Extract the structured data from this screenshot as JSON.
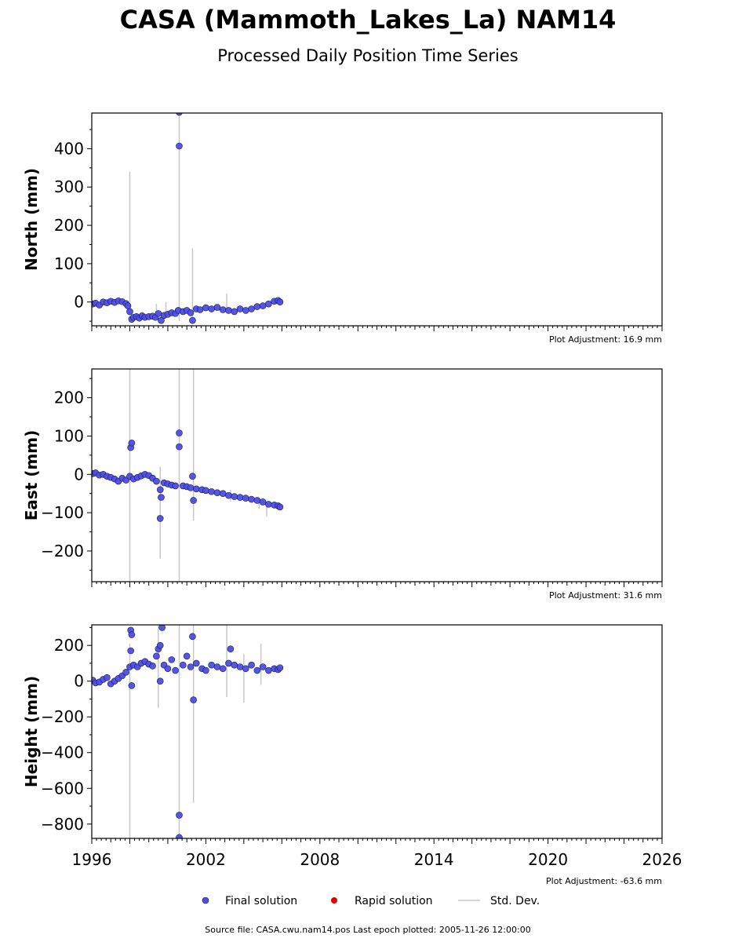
{
  "title": "CASA (Mammoth_Lakes_La) NAM14",
  "subtitle": "Processed Daily Position Time Series",
  "footer": "Source file: CASA.cwu.nam14.pos  Last epoch plotted: 2005-11-26 12:00:00",
  "legend": {
    "final": "Final solution",
    "rapid": "Rapid solution",
    "std": "Std. Dev."
  },
  "colors": {
    "final": "#4c4ce6",
    "final_edge": "#1a1a4d",
    "rapid": "#e00000",
    "std": "#c8c8c8"
  },
  "chart_data": [
    {
      "type": "scatter",
      "name": "north",
      "ylabel": "North (mm)",
      "adjustment": "Plot Adjustment: 16.9 mm",
      "xlim": [
        1996,
        2026
      ],
      "ylim": [
        -62,
        493
      ],
      "yticks": [
        0,
        100,
        200,
        300,
        400
      ],
      "ytick_labels": [
        "0",
        "100",
        "200",
        "300",
        "400"
      ],
      "series": [
        {
          "values": [
            [
              1996.05,
              -5
            ],
            [
              1996.2,
              -3
            ],
            [
              1996.4,
              -8
            ],
            [
              1996.6,
              0
            ],
            [
              1996.8,
              -2
            ],
            [
              1997.0,
              2
            ],
            [
              1997.2,
              -1
            ],
            [
              1997.4,
              3
            ],
            [
              1997.6,
              1
            ],
            [
              1997.8,
              -4
            ],
            [
              1997.9,
              -10
            ],
            [
              1998.0,
              -25
            ],
            [
              1998.1,
              -45
            ],
            [
              1998.2,
              -40
            ],
            [
              1998.35,
              -38
            ],
            [
              1998.5,
              -42
            ],
            [
              1998.65,
              -36
            ],
            [
              1998.8,
              -40
            ],
            [
              1999.0,
              -38
            ],
            [
              1999.2,
              -37
            ],
            [
              1999.35,
              -40
            ],
            [
              1999.5,
              -30
            ],
            [
              1999.65,
              -48
            ],
            [
              1999.8,
              -35
            ],
            [
              2000.0,
              -32
            ],
            [
              2000.2,
              -28
            ],
            [
              2000.4,
              -30
            ],
            [
              2000.55,
              -22
            ],
            [
              2000.6,
              495
            ],
            [
              2000.6,
              407
            ],
            [
              2000.8,
              -25
            ],
            [
              2001.0,
              -22
            ],
            [
              2001.2,
              -28
            ],
            [
              2001.3,
              -48
            ],
            [
              2001.5,
              -18
            ],
            [
              2001.7,
              -20
            ],
            [
              2002.0,
              -15
            ],
            [
              2002.3,
              -18
            ],
            [
              2002.6,
              -14
            ],
            [
              2002.9,
              -20
            ],
            [
              2003.2,
              -22
            ],
            [
              2003.5,
              -25
            ],
            [
              2003.8,
              -18
            ],
            [
              2004.1,
              -22
            ],
            [
              2004.4,
              -18
            ],
            [
              2004.7,
              -12
            ],
            [
              2005.0,
              -10
            ],
            [
              2005.3,
              -5
            ],
            [
              2005.6,
              2
            ],
            [
              2005.8,
              4
            ],
            [
              2005.9,
              0
            ]
          ]
        }
      ],
      "std": [
        [
          1998.0,
          -45,
          340
        ],
        [
          2000.6,
          -50,
          495
        ],
        [
          2001.3,
          -40,
          140
        ],
        [
          2003.1,
          -30,
          22
        ],
        [
          1999.4,
          -45,
          -5
        ],
        [
          1999.9,
          -40,
          0
        ]
      ]
    },
    {
      "type": "scatter",
      "name": "east",
      "ylabel": "East (mm)",
      "adjustment": "Plot Adjustment: 31.6 mm",
      "xlim": [
        1996,
        2026
      ],
      "ylim": [
        -280,
        275
      ],
      "yticks": [
        -200,
        -100,
        0,
        100,
        200
      ],
      "ytick_labels": [
        "−200",
        "−100",
        "0",
        "100",
        "200"
      ],
      "series": [
        {
          "values": [
            [
              1996.05,
              2
            ],
            [
              1996.2,
              4
            ],
            [
              1996.4,
              -2
            ],
            [
              1996.6,
              0
            ],
            [
              1996.8,
              -5
            ],
            [
              1997.0,
              -8
            ],
            [
              1997.2,
              -12
            ],
            [
              1997.4,
              -18
            ],
            [
              1997.6,
              -10
            ],
            [
              1997.8,
              -15
            ],
            [
              1998.0,
              -5
            ],
            [
              1998.05,
              70
            ],
            [
              1998.1,
              82
            ],
            [
              1998.2,
              -12
            ],
            [
              1998.4,
              -8
            ],
            [
              1998.6,
              -4
            ],
            [
              1998.8,
              0
            ],
            [
              1999.0,
              -3
            ],
            [
              1999.2,
              -10
            ],
            [
              1999.4,
              -18
            ],
            [
              1999.6,
              -40
            ],
            [
              1999.6,
              -115
            ],
            [
              1999.65,
              -60
            ],
            [
              1999.8,
              -22
            ],
            [
              2000.0,
              -25
            ],
            [
              2000.2,
              -28
            ],
            [
              2000.4,
              -30
            ],
            [
              2000.6,
              108
            ],
            [
              2000.6,
              72
            ],
            [
              2000.8,
              -30
            ],
            [
              2001.0,
              -32
            ],
            [
              2001.2,
              -35
            ],
            [
              2001.3,
              -5
            ],
            [
              2001.35,
              -68
            ],
            [
              2001.5,
              -38
            ],
            [
              2001.8,
              -40
            ],
            [
              2002.0,
              -42
            ],
            [
              2002.3,
              -45
            ],
            [
              2002.6,
              -48
            ],
            [
              2002.9,
              -50
            ],
            [
              2003.2,
              -55
            ],
            [
              2003.5,
              -58
            ],
            [
              2003.8,
              -60
            ],
            [
              2004.1,
              -62
            ],
            [
              2004.4,
              -65
            ],
            [
              2004.7,
              -68
            ],
            [
              2005.0,
              -72
            ],
            [
              2005.3,
              -78
            ],
            [
              2005.6,
              -80
            ],
            [
              2005.8,
              -82
            ],
            [
              2005.9,
              -85
            ]
          ]
        }
      ],
      "std": [
        [
          1998.0,
          -280,
          275
        ],
        [
          2000.6,
          -280,
          275
        ],
        [
          2001.35,
          -120,
          275
        ],
        [
          1999.6,
          -220,
          20
        ],
        [
          2003.3,
          -70,
          -40
        ],
        [
          2004.8,
          -90,
          -60
        ],
        [
          2005.2,
          -110,
          -70
        ]
      ]
    },
    {
      "type": "scatter",
      "name": "height",
      "ylabel": "Height (mm)",
      "adjustment": "Plot Adjustment: -63.6 mm",
      "xlim": [
        1996,
        2026
      ],
      "ylim": [
        -880,
        315
      ],
      "yticks": [
        -800,
        -600,
        -400,
        -200,
        0,
        200
      ],
      "ytick_labels": [
        "−800",
        "−600",
        "−400",
        "−200",
        "0",
        "200"
      ],
      "xticks": [
        1996,
        2002,
        2008,
        2014,
        2020,
        2026
      ],
      "xtick_labels": [
        "1996",
        "2002",
        "2008",
        "2014",
        "2020",
        "2026"
      ],
      "series": [
        {
          "values": [
            [
              1996.05,
              5
            ],
            [
              1996.2,
              -10
            ],
            [
              1996.4,
              -5
            ],
            [
              1996.6,
              10
            ],
            [
              1996.8,
              20
            ],
            [
              1997.0,
              -15
            ],
            [
              1997.2,
              0
            ],
            [
              1997.4,
              15
            ],
            [
              1997.6,
              30
            ],
            [
              1997.8,
              50
            ],
            [
              1998.0,
              80
            ],
            [
              1998.05,
              170
            ],
            [
              1998.05,
              285
            ],
            [
              1998.1,
              260
            ],
            [
              1998.1,
              -25
            ],
            [
              1998.2,
              90
            ],
            [
              1998.4,
              80
            ],
            [
              1998.6,
              100
            ],
            [
              1998.8,
              110
            ],
            [
              1999.0,
              95
            ],
            [
              1999.2,
              85
            ],
            [
              1999.4,
              140
            ],
            [
              1999.5,
              180
            ],
            [
              1999.6,
              200
            ],
            [
              1999.7,
              300
            ],
            [
              1999.6,
              0
            ],
            [
              1999.8,
              90
            ],
            [
              2000.0,
              70
            ],
            [
              2000.2,
              120
            ],
            [
              2000.4,
              60
            ],
            [
              2000.6,
              -750
            ],
            [
              2000.6,
              -875
            ],
            [
              2000.8,
              90
            ],
            [
              2001.0,
              140
            ],
            [
              2001.2,
              80
            ],
            [
              2001.3,
              250
            ],
            [
              2001.35,
              -105
            ],
            [
              2001.5,
              100
            ],
            [
              2001.8,
              70
            ],
            [
              2002.0,
              60
            ],
            [
              2002.3,
              90
            ],
            [
              2002.6,
              80
            ],
            [
              2002.9,
              70
            ],
            [
              2003.2,
              100
            ],
            [
              2003.3,
              180
            ],
            [
              2003.5,
              90
            ],
            [
              2003.8,
              80
            ],
            [
              2004.1,
              70
            ],
            [
              2004.4,
              90
            ],
            [
              2004.7,
              60
            ],
            [
              2005.0,
              80
            ],
            [
              2005.3,
              60
            ],
            [
              2005.6,
              70
            ],
            [
              2005.8,
              65
            ],
            [
              2005.9,
              75
            ]
          ]
        }
      ],
      "std": [
        [
          1998.0,
          -880,
          210
        ],
        [
          2000.6,
          -880,
          315
        ],
        [
          2001.35,
          -680,
          315
        ],
        [
          1999.5,
          -150,
          315
        ],
        [
          2003.1,
          -90,
          315
        ],
        [
          2004.0,
          -120,
          150
        ],
        [
          2004.9,
          -20,
          210
        ]
      ]
    }
  ]
}
